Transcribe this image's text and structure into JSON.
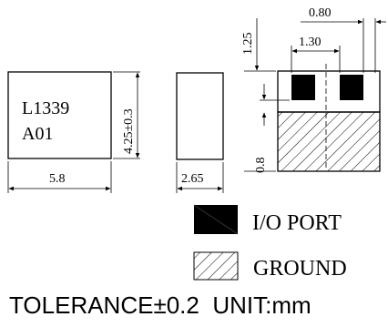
{
  "top_view": {
    "marking_line1": "L1339",
    "marking_line2": "A01",
    "width_dim": "5.8",
    "height_dim": "4.25±0.3"
  },
  "side_view": {
    "thickness_dim": "2.65"
  },
  "pad_view": {
    "pad_width_dim": "0.80",
    "pad_pitch_dim": "1.30",
    "top_band_dim": "1.25",
    "ground_height_dim": "0.8"
  },
  "legend": {
    "io_port_label": "I/O PORT",
    "ground_label": "GROUND"
  },
  "footnote": {
    "tolerance": "TOLERANCE±0.2",
    "unit": "UNIT:mm"
  }
}
